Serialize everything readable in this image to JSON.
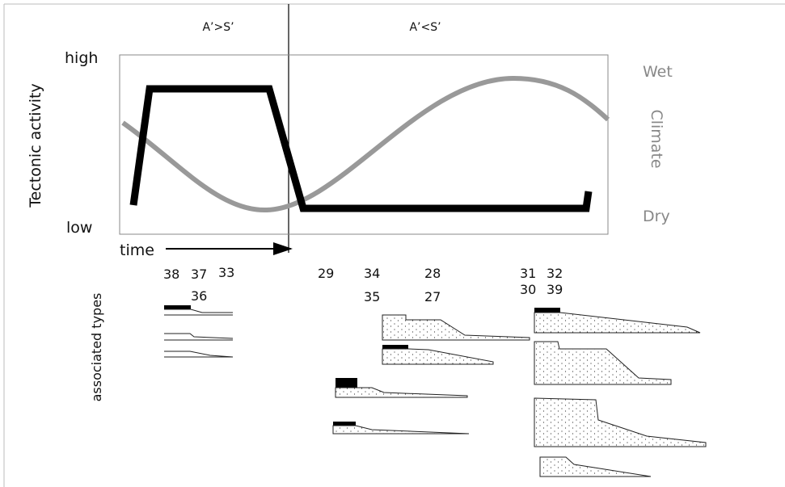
{
  "header": {
    "left_phase": "A’>S’",
    "right_phase": "A’<S’"
  },
  "tectonic_axis": {
    "label": "Tectonic activity",
    "high": "high",
    "low": "low",
    "time": "time"
  },
  "climate_axis": {
    "label": "Climate",
    "wet": "Wet",
    "dry": "Dry"
  },
  "types": {
    "label": "associated types",
    "groups": [
      [
        "38",
        "37",
        "33",
        "36"
      ],
      [
        "29",
        "34",
        "28",
        "35",
        "27"
      ],
      [
        "31",
        "32",
        "30",
        "39"
      ]
    ]
  }
}
